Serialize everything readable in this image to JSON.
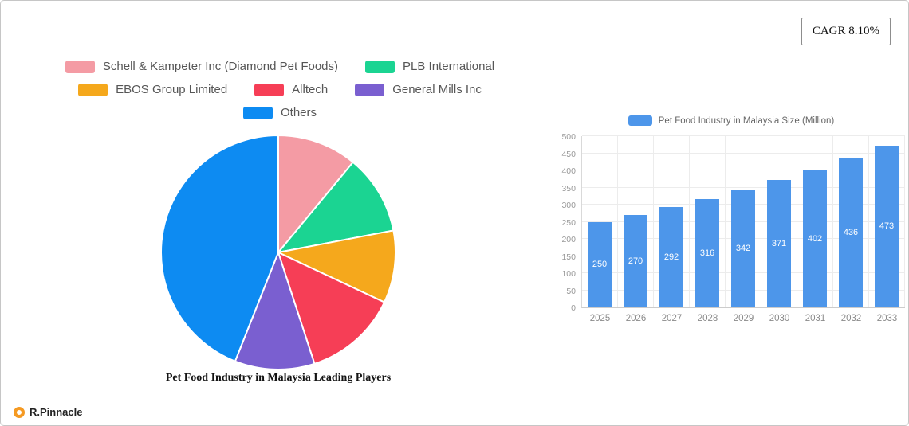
{
  "badge": {
    "label": "CAGR 8.10%"
  },
  "brand": {
    "label": "R.Pinnacle"
  },
  "legend": {
    "items": [
      {
        "label": "Schell & Kampeter Inc  (Diamond Pet Foods)",
        "color": "#f49ba4"
      },
      {
        "label": "PLB International",
        "color": "#1bd492"
      },
      {
        "label": "EBOS Group Limited",
        "color": "#f5a81c"
      },
      {
        "label": "Alltech",
        "color": "#f63e56"
      },
      {
        "label": "General Mills Inc",
        "color": "#7a5fd0"
      },
      {
        "label": "Others",
        "color": "#0d8bf2"
      }
    ]
  },
  "chart_data": [
    {
      "type": "pie",
      "title": "Pet Food Industry in Malaysia Leading Players",
      "labels": [
        "Schell & Kampeter Inc  (Diamond Pet Foods)",
        "PLB International",
        "EBOS Group Limited",
        "Alltech",
        "General Mills Inc",
        "Others"
      ],
      "values": [
        11,
        11,
        10,
        13,
        11,
        44
      ],
      "colors": [
        "#f49ba4",
        "#1bd492",
        "#f5a81c",
        "#f63e56",
        "#7a5fd0",
        "#0d8bf2"
      ],
      "legend_position": "top"
    },
    {
      "type": "bar",
      "title": "Pet Food Industry in Malaysia Size (Million)",
      "categories": [
        "2025",
        "2026",
        "2027",
        "2028",
        "2029",
        "2030",
        "2031",
        "2032",
        "2033"
      ],
      "values": [
        250,
        270,
        292,
        316,
        342,
        371,
        402,
        436,
        473
      ],
      "xlabel": "",
      "ylabel": "",
      "ylim": [
        0,
        500
      ],
      "ytick_step": 50,
      "bar_color": "#4d96ea",
      "grid": true,
      "legend_position": "top"
    }
  ]
}
